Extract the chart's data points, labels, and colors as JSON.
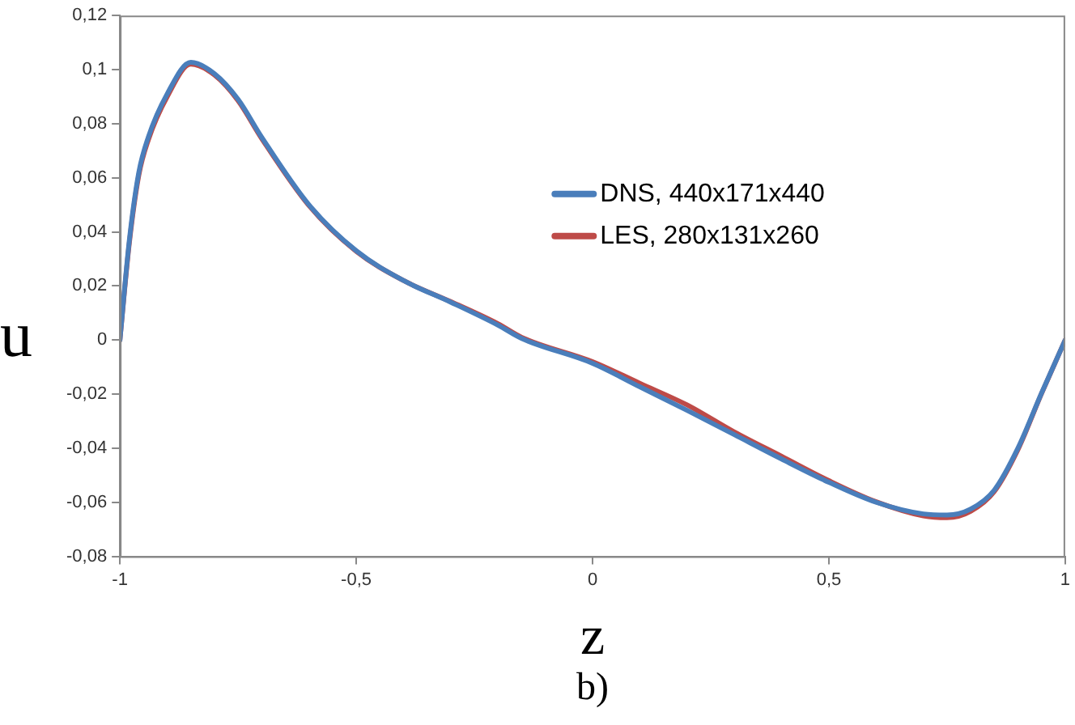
{
  "chart_data": {
    "type": "line",
    "xlabel": "z",
    "ylabel": "u",
    "annotations": [
      "b)"
    ],
    "xlim": [
      -1,
      1
    ],
    "xticks": [
      {
        "value": -1,
        "label": "-1"
      },
      {
        "value": -0.5,
        "label": "-0,5"
      },
      {
        "value": 0,
        "label": "0"
      },
      {
        "value": 0.5,
        "label": "0,5"
      },
      {
        "value": 1,
        "label": "1"
      }
    ],
    "ylim": [
      -0.08,
      0.12
    ],
    "yticks": [
      {
        "value": -0.08,
        "label": "-0,08"
      },
      {
        "value": -0.06,
        "label": "-0,06"
      },
      {
        "value": -0.04,
        "label": "-0,04"
      },
      {
        "value": -0.02,
        "label": "-0,02"
      },
      {
        "value": 0,
        "label": "0"
      },
      {
        "value": 0.02,
        "label": "0,02"
      },
      {
        "value": 0.04,
        "label": "0,04"
      },
      {
        "value": 0.06,
        "label": "0,06"
      },
      {
        "value": 0.08,
        "label": "0,08"
      },
      {
        "value": 0.1,
        "label": "0,1"
      },
      {
        "value": 0.12,
        "label": "0,12"
      }
    ],
    "x": [
      -1,
      -0.98,
      -0.96,
      -0.94,
      -0.9,
      -0.85,
      -0.8,
      -0.75,
      -0.7,
      -0.6,
      -0.5,
      -0.4,
      -0.3,
      -0.2,
      -0.15,
      0,
      0.1,
      0.2,
      0.3,
      0.4,
      0.5,
      0.6,
      0.7,
      0.75,
      0.8,
      0.85,
      0.9,
      0.95,
      1
    ],
    "series": [
      {
        "name": "DNS, 440x171x440",
        "color": "#4a7ebb",
        "values": [
          0,
          0.037,
          0.062,
          0.075,
          0.091,
          0.1027,
          0.0985,
          0.089,
          0.075,
          0.05,
          0.033,
          0.022,
          0.014,
          0.0055,
          0.0006,
          -0.0086,
          -0.0173,
          -0.026,
          -0.035,
          -0.044,
          -0.0526,
          -0.06,
          -0.0643,
          -0.0647,
          -0.0625,
          -0.0555,
          -0.04,
          -0.0196,
          0
        ]
      },
      {
        "name": "LES, 280x131x260",
        "color": "#be4b48",
        "values": [
          0,
          0.036,
          0.061,
          0.074,
          0.09,
          0.102,
          0.098,
          0.0885,
          0.0745,
          0.0497,
          0.0328,
          0.022,
          0.0142,
          0.006,
          0.001,
          -0.008,
          -0.016,
          -0.024,
          -0.034,
          -0.043,
          -0.052,
          -0.0598,
          -0.065,
          -0.0657,
          -0.0633,
          -0.056,
          -0.0405,
          -0.0198,
          0
        ]
      }
    ],
    "grid": false,
    "legend": "center",
    "marker": "none",
    "line_style": "solid"
  }
}
